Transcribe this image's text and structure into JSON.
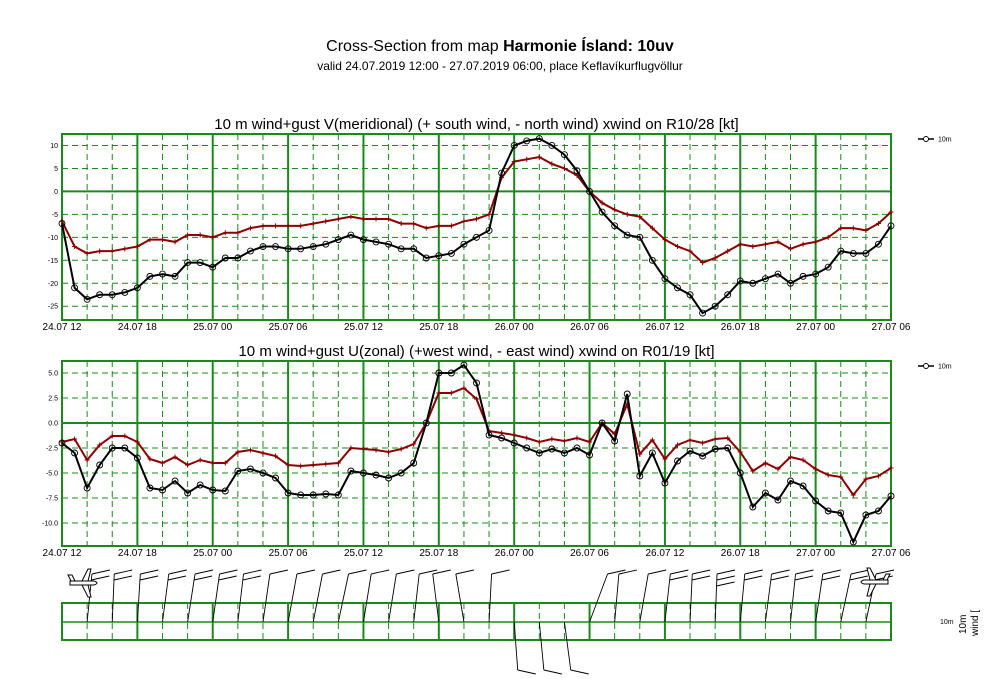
{
  "header": {
    "title_prefix": "Cross-Section from map ",
    "title_bold": "Harmonie Ísland: 10uv",
    "subtitle": "valid 24.07.2019 12:00 - 27.07.2019 06:00, place Keflavíkurflugvöllur"
  },
  "colors": {
    "grid": "#1a8a1a",
    "primary": "#000000",
    "gust": "#8b0000"
  },
  "chart_data": [
    {
      "type": "line",
      "title": "10 m wind+gust V(meridional) (+ south wind, - north wind) xwind on R10/28 [kt]",
      "x": [
        0,
        1,
        2,
        3,
        4,
        5,
        6,
        7,
        8,
        9,
        10,
        11,
        12,
        13,
        14,
        15,
        16,
        17,
        18,
        19,
        20,
        21,
        22,
        23,
        24,
        25,
        26,
        27,
        28,
        29,
        30,
        31,
        32,
        33,
        34,
        35,
        36,
        37,
        38,
        39,
        40,
        41,
        42,
        43,
        44,
        45,
        46,
        47,
        48,
        49,
        50,
        51,
        52,
        53,
        54,
        55,
        56,
        57,
        58,
        59,
        60,
        61,
        62,
        63,
        64,
        65,
        66
      ],
      "xtick_labels": [
        "24.07 12",
        "24.07 18",
        "25.07 00",
        "25.07 06",
        "25.07 12",
        "25.07 18",
        "26.07 00",
        "26.07 06",
        "26.07 12",
        "26.07 18",
        "27.07 00",
        "27.07 06"
      ],
      "xtick_positions": [
        0,
        6,
        12,
        18,
        24,
        30,
        36,
        42,
        48,
        54,
        60,
        66
      ],
      "ylim": [
        -28,
        12.5
      ],
      "yticks": [
        10,
        5,
        0,
        -5,
        -10,
        -15,
        -20,
        -25
      ],
      "legend": "10m",
      "series": [
        {
          "name": "10m",
          "values": [
            -7,
            -21,
            -23.5,
            -22.5,
            -22.5,
            -22,
            -21,
            -18.5,
            -18,
            -18.5,
            -15.5,
            -15.5,
            -16.5,
            -14.5,
            -14.5,
            -13,
            -12,
            -12,
            -12.5,
            -12.5,
            -12,
            -11.5,
            -10.5,
            -9.5,
            -10.5,
            -11,
            -11.5,
            -12.5,
            -12.5,
            -14.5,
            -14,
            -13.5,
            -11.5,
            -10,
            -8.5,
            4,
            10,
            11,
            11.5,
            10,
            8,
            4.5,
            0,
            -4.5,
            -7.5,
            -9.5,
            -10,
            -15,
            -19,
            -21,
            -22.5,
            -26.5,
            -25,
            -22.5,
            -19.5,
            -20,
            -19,
            -18,
            -20,
            -18.5,
            -18,
            -16.5,
            -13,
            -13.5,
            -13.5,
            -11.5,
            -7.5
          ]
        },
        {
          "name": "gust",
          "values": [
            -6.5,
            -12,
            -13.5,
            -13,
            -13,
            -12.5,
            -12,
            -10.5,
            -10.5,
            -11,
            -9.5,
            -9.5,
            -10,
            -9,
            -9,
            -8,
            -7.5,
            -7.5,
            -7.5,
            -7.5,
            -7,
            -6.5,
            -6,
            -5.5,
            -6,
            -6,
            -6,
            -7,
            -7,
            -8,
            -7.5,
            -7.5,
            -6.5,
            -6,
            -5,
            3,
            6.5,
            7,
            7.5,
            6,
            5,
            3.5,
            0,
            -2.5,
            -4,
            -5,
            -5.5,
            -8,
            -10.5,
            -12,
            -13,
            -15.5,
            -14.5,
            -13,
            -11.5,
            -12,
            -11.5,
            -11,
            -12.5,
            -11.5,
            -11,
            -10,
            -8,
            -8,
            -8.5,
            -7,
            -4.5
          ]
        }
      ]
    },
    {
      "type": "line",
      "title": "10 m wind+gust U(zonal) (+west wind, - east wind) xwind on R01/19 [kt]",
      "x": [
        0,
        1,
        2,
        3,
        4,
        5,
        6,
        7,
        8,
        9,
        10,
        11,
        12,
        13,
        14,
        15,
        16,
        17,
        18,
        19,
        20,
        21,
        22,
        23,
        24,
        25,
        26,
        27,
        28,
        29,
        30,
        31,
        32,
        33,
        34,
        35,
        36,
        37,
        38,
        39,
        40,
        41,
        42,
        43,
        44,
        45,
        46,
        47,
        48,
        49,
        50,
        51,
        52,
        53,
        54,
        55,
        56,
        57,
        58,
        59,
        60,
        61,
        62,
        63,
        64,
        65,
        66
      ],
      "xtick_labels": [
        "24.07 12",
        "24.07 18",
        "25.07 00",
        "25.07 06",
        "25.07 12",
        "25.07 18",
        "26.07 00",
        "26.07 06",
        "26.07 12",
        "26.07 18",
        "27.07 00",
        "27.07 06"
      ],
      "xtick_positions": [
        0,
        6,
        12,
        18,
        24,
        30,
        36,
        42,
        48,
        54,
        60,
        66
      ],
      "ylim": [
        -12.3,
        6.2
      ],
      "yticks": [
        5,
        2.5,
        0,
        -2.5,
        -5,
        -7.5,
        -10
      ],
      "legend": "10m",
      "series": [
        {
          "name": "10m",
          "values": [
            -2,
            -3,
            -6.5,
            -4.2,
            -2.5,
            -2.5,
            -3.5,
            -6.5,
            -6.7,
            -5.8,
            -7,
            -6.2,
            -6.7,
            -6.8,
            -4.8,
            -4.6,
            -5,
            -5.5,
            -7,
            -7.2,
            -7.2,
            -7.1,
            -7.2,
            -4.8,
            -5,
            -5.2,
            -5.5,
            -5,
            -4,
            0,
            5,
            5,
            5.8,
            4,
            -1.2,
            -1.5,
            -2,
            -2.5,
            -3,
            -2.6,
            -3,
            -2.5,
            -3.2,
            0,
            -1.8,
            2.9,
            -5.3,
            -3,
            -6,
            -3.8,
            -2.8,
            -3.3,
            -2.6,
            -2.5,
            -5,
            -8.4,
            -7,
            -7.7,
            -5.8,
            -6.3,
            -7.8,
            -8.8,
            -9,
            -11.9,
            -9.2,
            -8.8,
            -7.3
          ]
        },
        {
          "name": "gust",
          "values": [
            -1.9,
            -1.6,
            -3.7,
            -2.2,
            -1.3,
            -1.3,
            -1.9,
            -3.6,
            -4,
            -3.4,
            -4.2,
            -3.7,
            -4,
            -4,
            -2.9,
            -2.7,
            -3,
            -3.3,
            -4.2,
            -4.3,
            -4.2,
            -4.1,
            -4,
            -2.5,
            -2.6,
            -2.7,
            -2.9,
            -2.6,
            -2.1,
            0,
            3,
            3,
            3.5,
            2.4,
            -0.8,
            -1,
            -1.2,
            -1.5,
            -1.9,
            -1.6,
            -1.8,
            -1.5,
            -1.9,
            0,
            -1.1,
            1.9,
            -3.1,
            -1.7,
            -3.6,
            -2.2,
            -1.7,
            -2,
            -1.6,
            -1.5,
            -2.9,
            -4.8,
            -4,
            -4.6,
            -3.4,
            -3.7,
            -4.6,
            -5.2,
            -5.4,
            -7.2,
            -5.6,
            -5.3,
            -4.5
          ]
        }
      ]
    }
  ],
  "wind_panel": {
    "label_10m": "10m",
    "label_wind": "wind [",
    "aircraft_icon": "airplane-icon"
  }
}
